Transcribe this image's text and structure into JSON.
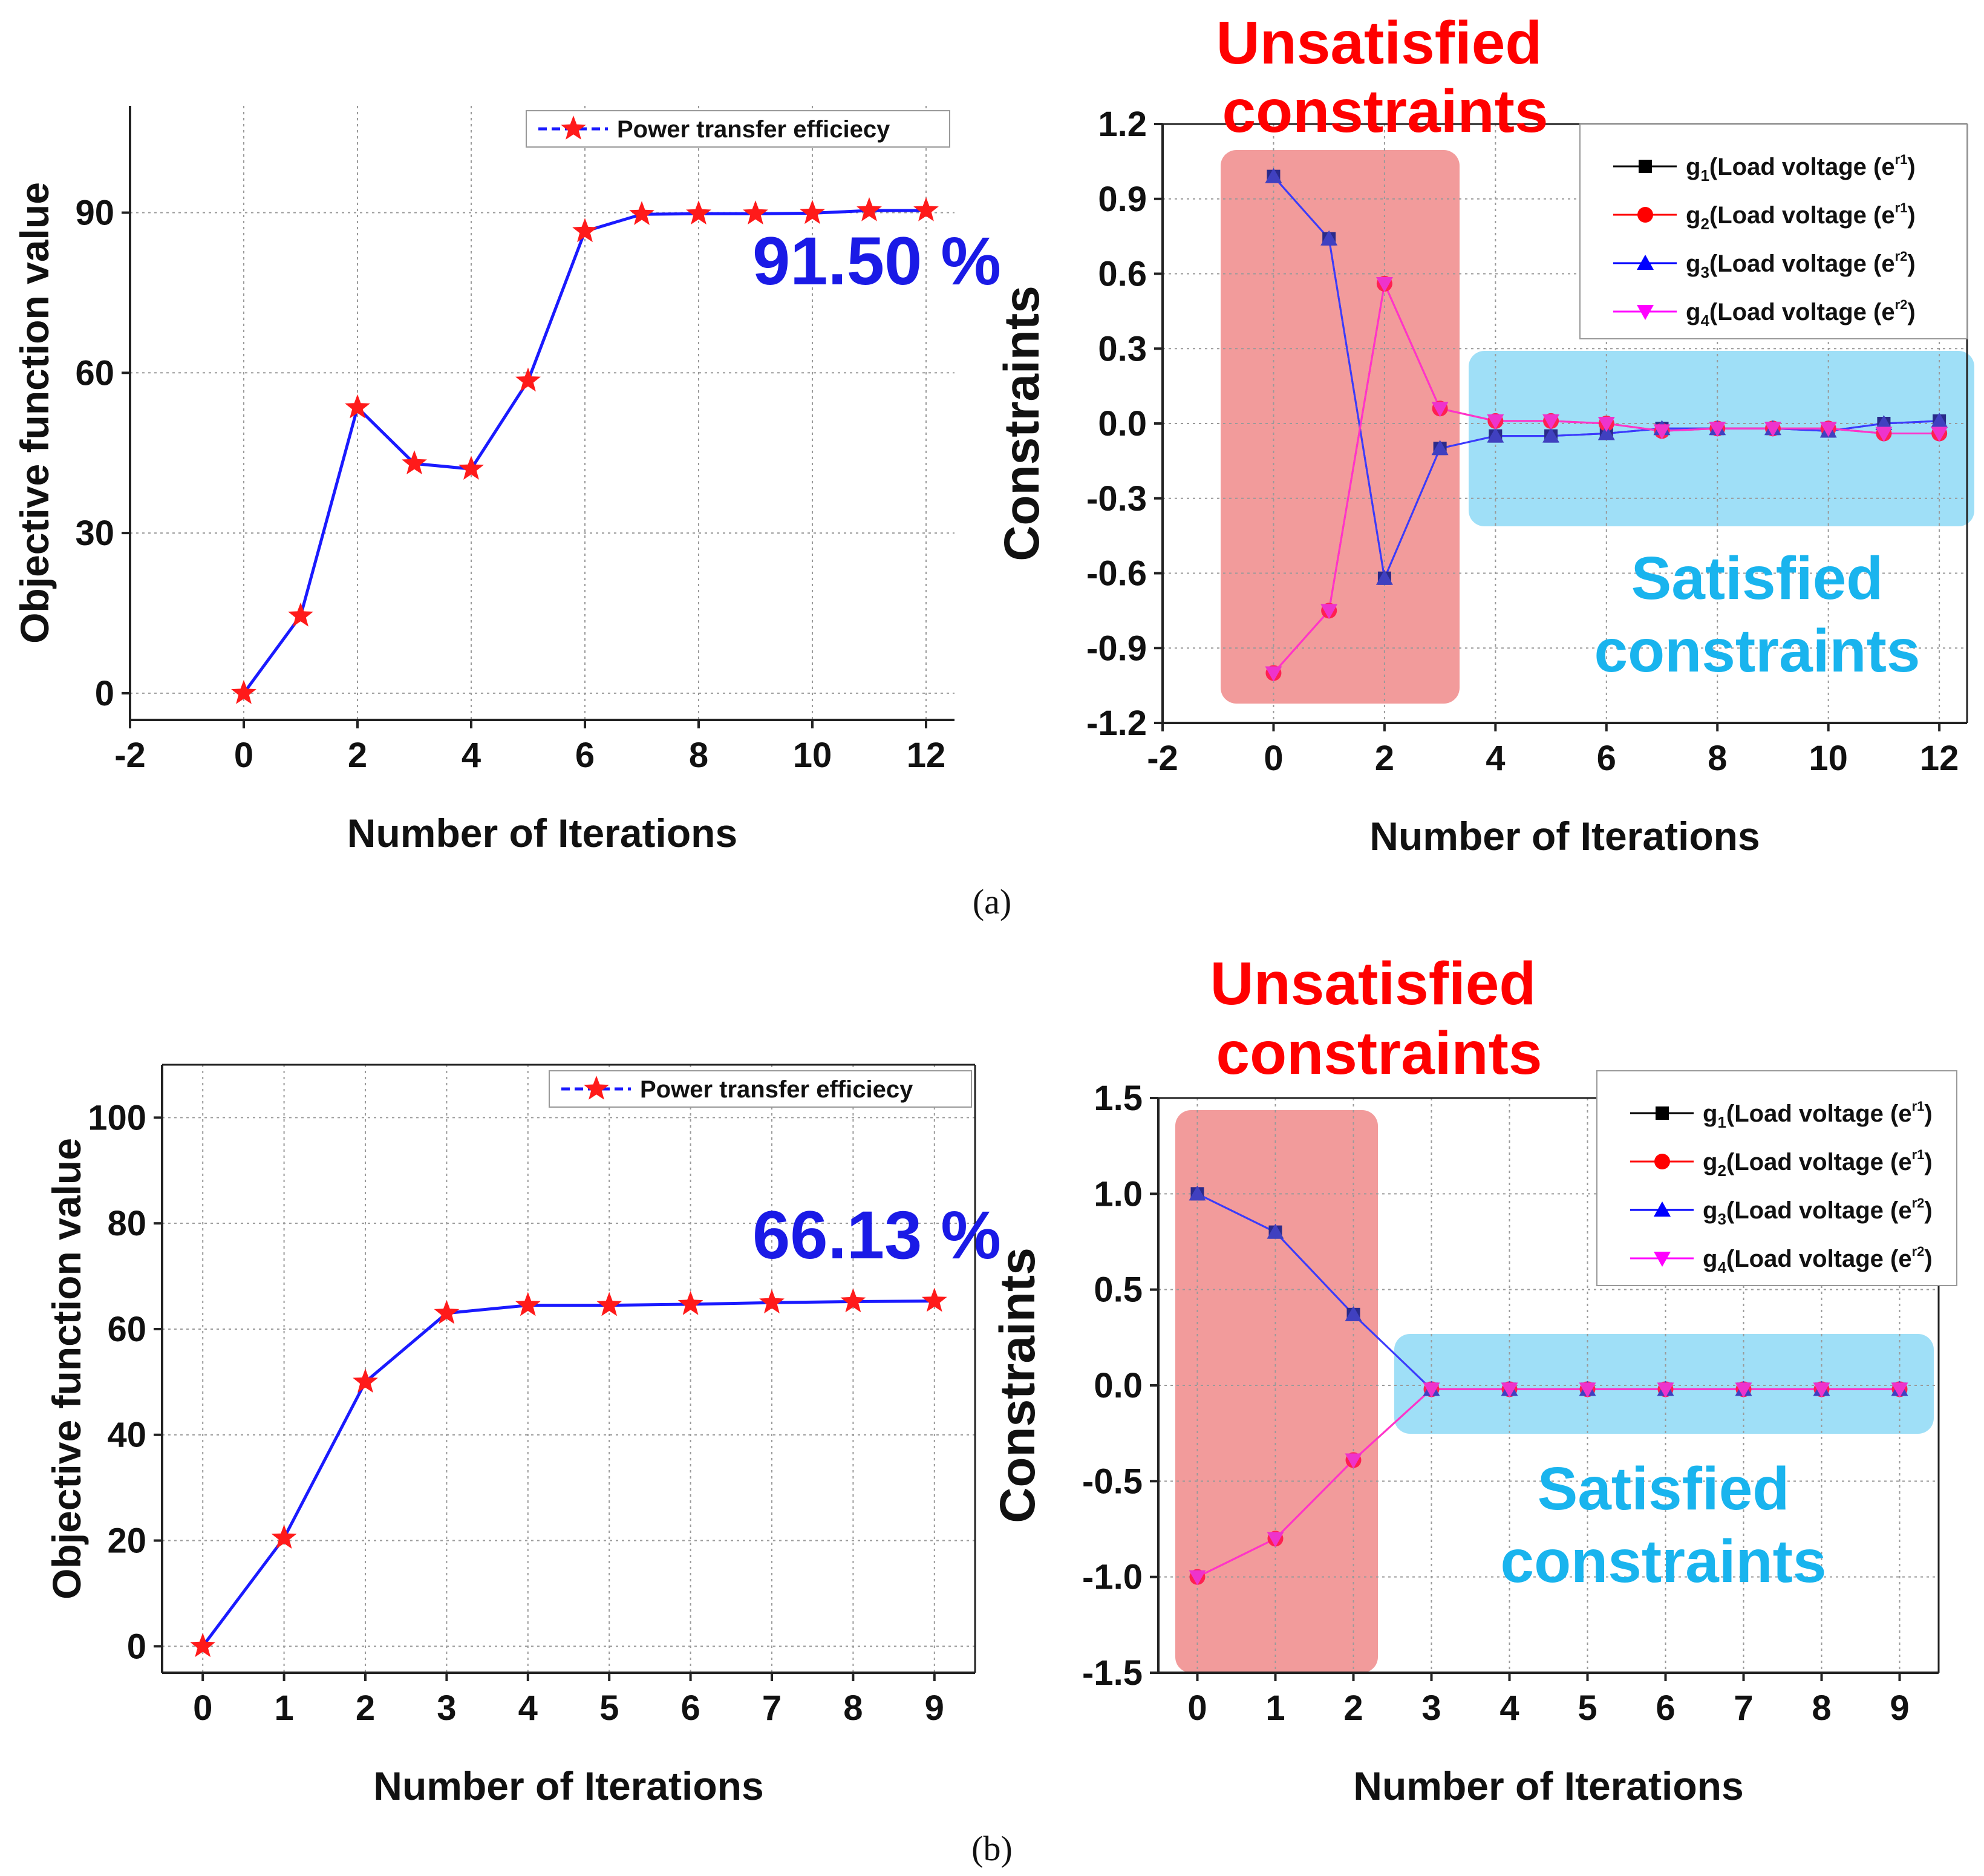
{
  "panels": {
    "a": "(a)",
    "b": "(b)"
  },
  "chart_data": [
    {
      "id": "a-left",
      "type": "line",
      "title": "",
      "xlabel": "Number of Iterations",
      "ylabel": "Objective function value",
      "xlim": [
        -2,
        12.5
      ],
      "ylim": [
        -5,
        110
      ],
      "xticks": [
        -2,
        0,
        2,
        4,
        6,
        8,
        10,
        12
      ],
      "yticks": [
        0,
        30,
        60,
        90
      ],
      "grid": true,
      "legend_position": "top-right",
      "series": [
        {
          "name": "Power transfer efficiecy",
          "x": [
            0,
            1,
            2,
            3,
            4,
            5,
            6,
            7,
            8,
            9,
            10,
            11,
            12
          ],
          "values": [
            0,
            14.5,
            53.5,
            43,
            42,
            58.5,
            86.5,
            89.7,
            89.8,
            89.8,
            89.9,
            90.4,
            90.4
          ]
        }
      ],
      "annotations": [
        "91.50 %"
      ]
    },
    {
      "id": "a-right",
      "type": "line",
      "title": "",
      "xlabel": "Number of Iterations",
      "ylabel": "Constraints",
      "xlim": [
        -2,
        12.5
      ],
      "ylim": [
        -1.2,
        1.2
      ],
      "xticks": [
        -2,
        0,
        2,
        4,
        6,
        8,
        10,
        12
      ],
      "yticks": [
        "1.2",
        "0.9",
        "0.6",
        "0.3",
        "0.0",
        "-0.3",
        "-0.6",
        "-0.9",
        "-1.2"
      ],
      "grid": true,
      "legend_position": "top-right",
      "series": [
        {
          "name": "g1(Load voltage (e^r1)",
          "label": "g",
          "sub": "1",
          "text": "(Load voltage (e",
          "sup": "r1",
          "close": ")",
          "x": [
            0,
            1,
            2,
            3,
            4,
            5,
            6,
            7,
            8,
            9,
            10,
            11,
            12
          ],
          "values": [
            0.99,
            0.74,
            -0.62,
            -0.1,
            -0.05,
            -0.05,
            -0.04,
            -0.02,
            -0.02,
            -0.02,
            -0.03,
            0,
            0.01
          ]
        },
        {
          "name": "g2(Load voltage (e^r1)",
          "label": "g",
          "sub": "2",
          "text": "(Load voltage (e",
          "sup": "r1",
          "close": ")",
          "x": [
            0,
            1,
            2,
            3,
            4,
            5,
            6,
            7,
            8,
            9,
            10,
            11,
            12
          ],
          "values": [
            -1.0,
            -0.75,
            0.56,
            0.06,
            0.01,
            0.01,
            0.0,
            -0.03,
            -0.02,
            -0.02,
            -0.02,
            -0.04,
            -0.04
          ]
        },
        {
          "name": "g3(Load voltage (e^r2)",
          "label": "g",
          "sub": "3",
          "text": "(Load voltage (e",
          "sup": "r2",
          "close": ")",
          "x": [
            0,
            1,
            2,
            3,
            4,
            5,
            6,
            7,
            8,
            9,
            10,
            11,
            12
          ],
          "values": [
            0.99,
            0.74,
            -0.62,
            -0.1,
            -0.05,
            -0.05,
            -0.04,
            -0.02,
            -0.02,
            -0.02,
            -0.03,
            0,
            0.01
          ]
        },
        {
          "name": "g4(Load voltage (e^r2)",
          "label": "g",
          "sub": "4",
          "text": "(Load voltage (e",
          "sup": "r2",
          "close": ")",
          "x": [
            0,
            1,
            2,
            3,
            4,
            5,
            6,
            7,
            8,
            9,
            10,
            11,
            12
          ],
          "values": [
            -1.0,
            -0.75,
            0.56,
            0.06,
            0.01,
            0.01,
            0.0,
            -0.03,
            -0.02,
            -0.02,
            -0.02,
            -0.04,
            -0.04
          ]
        }
      ],
      "annotations": {
        "unsatisfied": [
          "Unsatisfied",
          "constraints"
        ],
        "satisfied": [
          "Satisfied",
          "constraints"
        ]
      }
    },
    {
      "id": "b-left",
      "type": "line",
      "title": "",
      "xlabel": "Number of Iterations",
      "ylabel": "Objective function value",
      "xlim": [
        -0.5,
        9.5
      ],
      "ylim": [
        -5,
        110
      ],
      "xticks": [
        0,
        1,
        2,
        3,
        4,
        5,
        6,
        7,
        8,
        9
      ],
      "yticks": [
        0,
        20,
        40,
        60,
        80,
        100
      ],
      "grid": true,
      "legend_position": "top-right",
      "series": [
        {
          "name": "Power transfer efficiecy",
          "x": [
            0,
            1,
            2,
            3,
            4,
            5,
            6,
            7,
            8,
            9
          ],
          "values": [
            0,
            20.5,
            50,
            63,
            64.5,
            64.5,
            64.7,
            65,
            65.2,
            65.3
          ]
        }
      ],
      "annotations": [
        "66.13 %"
      ]
    },
    {
      "id": "b-right",
      "type": "line",
      "title": "",
      "xlabel": "Number of Iterations",
      "ylabel": "Constraints",
      "xlim": [
        -0.5,
        9.5
      ],
      "ylim": [
        -1.5,
        1.5
      ],
      "xticks": [
        0,
        1,
        2,
        3,
        4,
        5,
        6,
        7,
        8,
        9
      ],
      "yticks": [
        "1.5",
        "1.0",
        "0.5",
        "0.0",
        "-0.5",
        "-1.0",
        "-1.5"
      ],
      "grid": true,
      "legend_position": "top-right",
      "series": [
        {
          "name": "g1(Load voltage (e^r1)",
          "label": "g",
          "sub": "1",
          "text": "(Load voltage (e",
          "sup": "r1",
          "close": ")",
          "x": [
            0,
            1,
            2,
            3,
            4,
            5,
            6,
            7,
            8,
            9
          ],
          "values": [
            1.0,
            0.8,
            0.37,
            -0.02,
            -0.02,
            -0.02,
            -0.02,
            -0.02,
            -0.02,
            -0.02
          ]
        },
        {
          "name": "g2(Load voltage (e^r1)",
          "label": "g",
          "sub": "2",
          "text": "(Load voltage (e",
          "sup": "r1",
          "close": ")",
          "x": [
            0,
            1,
            2,
            3,
            4,
            5,
            6,
            7,
            8,
            9
          ],
          "values": [
            -1.0,
            -0.8,
            -0.39,
            -0.02,
            -0.02,
            -0.02,
            -0.02,
            -0.02,
            -0.02,
            -0.02
          ]
        },
        {
          "name": "g3(Load voltage (e^r2)",
          "label": "g",
          "sub": "3",
          "text": "(Load voltage (e",
          "sup": "r2",
          "close": ")",
          "x": [
            0,
            1,
            2,
            3,
            4,
            5,
            6,
            7,
            8,
            9
          ],
          "values": [
            1.0,
            0.8,
            0.37,
            -0.02,
            -0.02,
            -0.02,
            -0.02,
            -0.02,
            -0.02,
            -0.02
          ]
        },
        {
          "name": "g4(Load voltage (e^r2)",
          "label": "g",
          "sub": "4",
          "text": "(Load voltage (e",
          "sup": "r2",
          "close": ")",
          "x": [
            0,
            1,
            2,
            3,
            4,
            5,
            6,
            7,
            8,
            9
          ],
          "values": [
            -1.0,
            -0.8,
            -0.39,
            -0.02,
            -0.02,
            -0.02,
            -0.02,
            -0.02,
            -0.02,
            -0.02
          ]
        }
      ],
      "annotations": {
        "unsatisfied": [
          "Unsatisfied",
          "constraints"
        ],
        "satisfied": [
          "Satisfied",
          "constraints"
        ]
      }
    }
  ],
  "colors": {
    "objective_line": "#1a1aff",
    "objective_marker": "#ff1a1a",
    "percent_text": "#1a1ae6",
    "g1": "#000000",
    "g2": "#ff0000",
    "g3": "#0000ff",
    "g4": "#ff00ff",
    "unsatisfied_fill": "#f08a8a",
    "unsatisfied_text": "#ff0000",
    "satisfied_fill": "#7fd4f4",
    "satisfied_text": "#19b4ee",
    "grid": "#9a9a9a"
  }
}
